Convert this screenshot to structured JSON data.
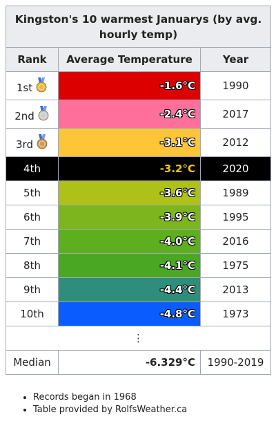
{
  "header": {
    "title": "Kingston's 10 warmest Januarys (by avg. hourly temp)"
  },
  "table": {
    "columns": [
      "Rank",
      "Average Temperature",
      "Year"
    ],
    "rows": [
      {
        "rank": "1st",
        "temp": "-1.6°C",
        "year": "1990",
        "color": "#dd0000"
      },
      {
        "rank": "2nd",
        "temp": "-2.4°C",
        "year": "2017",
        "color": "#fe6f9b"
      },
      {
        "rank": "3rd",
        "temp": "-3.1°C",
        "year": "2012",
        "color": "#fdc537"
      },
      {
        "rank": "4th",
        "temp": "-3.2°C",
        "year": "2020",
        "color": "#000000",
        "highlight": true
      },
      {
        "rank": "5th",
        "temp": "-3.6°C",
        "year": "1989",
        "color": "#adc118"
      },
      {
        "rank": "6th",
        "temp": "-3.9°C",
        "year": "1995",
        "color": "#7db61c"
      },
      {
        "rank": "7th",
        "temp": "-4.0°C",
        "year": "2016",
        "color": "#5eaf1f"
      },
      {
        "rank": "8th",
        "temp": "-4.1°C",
        "year": "1975",
        "color": "#4aa724"
      },
      {
        "rank": "9th",
        "temp": "-4.4°C",
        "year": "2013",
        "color": "#2e8e7b"
      },
      {
        "rank": "10th",
        "temp": "-4.8°C",
        "year": "1973",
        "color": "#0a5cff"
      }
    ],
    "ellipsis": "⋮",
    "median": {
      "label": "Median",
      "temp": "-6.329°C",
      "years": "1990-2019"
    }
  },
  "notes": [
    "Records began in 1968",
    "Table provided by RolfsWeather.ca"
  ]
}
